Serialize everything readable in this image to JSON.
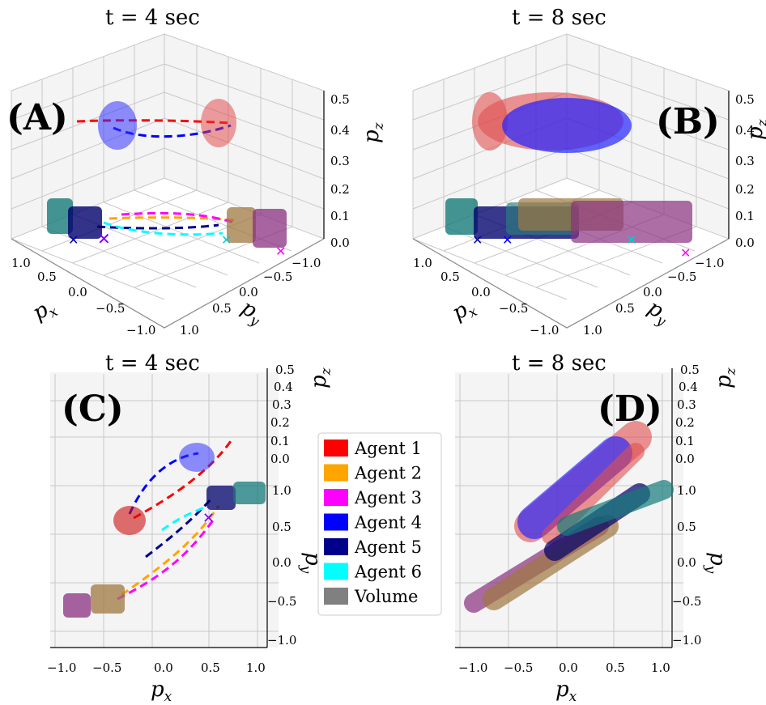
{
  "chart_data": {
    "type": "3d-trajectory",
    "legend": {
      "placement": "center",
      "entries": [
        {
          "name": "Agent 1",
          "color": "#ff0000"
        },
        {
          "name": "Agent 2",
          "color": "#ffa500"
        },
        {
          "name": "Agent 3",
          "color": "#ff00ff"
        },
        {
          "name": "Agent 4",
          "color": "#0000ff"
        },
        {
          "name": "Agent 5",
          "color": "#00008b"
        },
        {
          "name": "Agent 6",
          "color": "#00ffff"
        },
        {
          "name": "Volume",
          "color": "#808080"
        }
      ]
    },
    "panels": [
      {
        "label": "(A)",
        "title": "t = 4 sec",
        "view": "oblique",
        "xlabel": "p",
        "xsub": "x",
        "ylabel": "p",
        "ysub": "y",
        "zlabel": "p",
        "zsub": "z",
        "xticks": [
          "1.0",
          "0.5",
          "0.0",
          "−0.5",
          "−1.0"
        ],
        "yticks": [
          "−1.0",
          "−0.5",
          "0.0",
          "0.5",
          "1.0"
        ],
        "zticks": [
          "0.0",
          "0.1",
          "0.2",
          "0.3",
          "0.4",
          "0.5"
        ],
        "xlim": [
          -1,
          1
        ],
        "ylim": [
          -1,
          1
        ],
        "zlim": [
          0,
          0.5
        ]
      },
      {
        "label": "(B)",
        "title": "t = 8 sec",
        "view": "oblique",
        "xlabel": "p",
        "xsub": "x",
        "ylabel": "p",
        "ysub": "y",
        "zlabel": "p",
        "zsub": "z",
        "xticks": [
          "1.0",
          "0.5",
          "0.0",
          "−0.5",
          "−1.0"
        ],
        "yticks": [
          "−1.0",
          "−0.5",
          "0.0",
          "0.5",
          "1.0"
        ],
        "zticks": [
          "0.0",
          "0.1",
          "0.2",
          "0.3",
          "0.4",
          "0.5"
        ],
        "xlim": [
          -1,
          1
        ],
        "ylim": [
          -1,
          1
        ],
        "zlim": [
          0,
          0.5
        ]
      },
      {
        "label": "(C)",
        "title": "t = 4 sec",
        "view": "top",
        "xlabel": "p",
        "xsub": "x",
        "ylabel": "p",
        "ysub": "y",
        "zlabel": "p",
        "zsub": "z",
        "xticks": [
          "−1.0",
          "−0.5",
          "0.0",
          "0.5",
          "1.0"
        ],
        "yticks": [
          "1.0",
          "0.5",
          "0.0",
          "−0.5",
          "−1.0"
        ],
        "zticks": [
          "0.5",
          "0.4",
          "0.3",
          "0.2",
          "0.1",
          "0.0"
        ],
        "xlim": [
          -1,
          1
        ],
        "ylim": [
          -1,
          1
        ],
        "zlim": [
          0,
          0.5
        ]
      },
      {
        "label": "(D)",
        "title": "t = 8 sec",
        "view": "top",
        "xlabel": "p",
        "xsub": "x",
        "ylabel": "p",
        "ysub": "y",
        "zlabel": "p",
        "zsub": "z",
        "xticks": [
          "−1.0",
          "−0.5",
          "0.0",
          "0.5",
          "1.0"
        ],
        "yticks": [
          "1.0",
          "0.5",
          "0.0",
          "−0.5",
          "−1.0"
        ],
        "zticks": [
          "0.5",
          "0.4",
          "0.3",
          "0.2",
          "0.1",
          "0.0"
        ],
        "xlim": [
          -1,
          1
        ],
        "ylim": [
          -1,
          1
        ],
        "zlim": [
          0,
          0.5
        ]
      }
    ]
  }
}
